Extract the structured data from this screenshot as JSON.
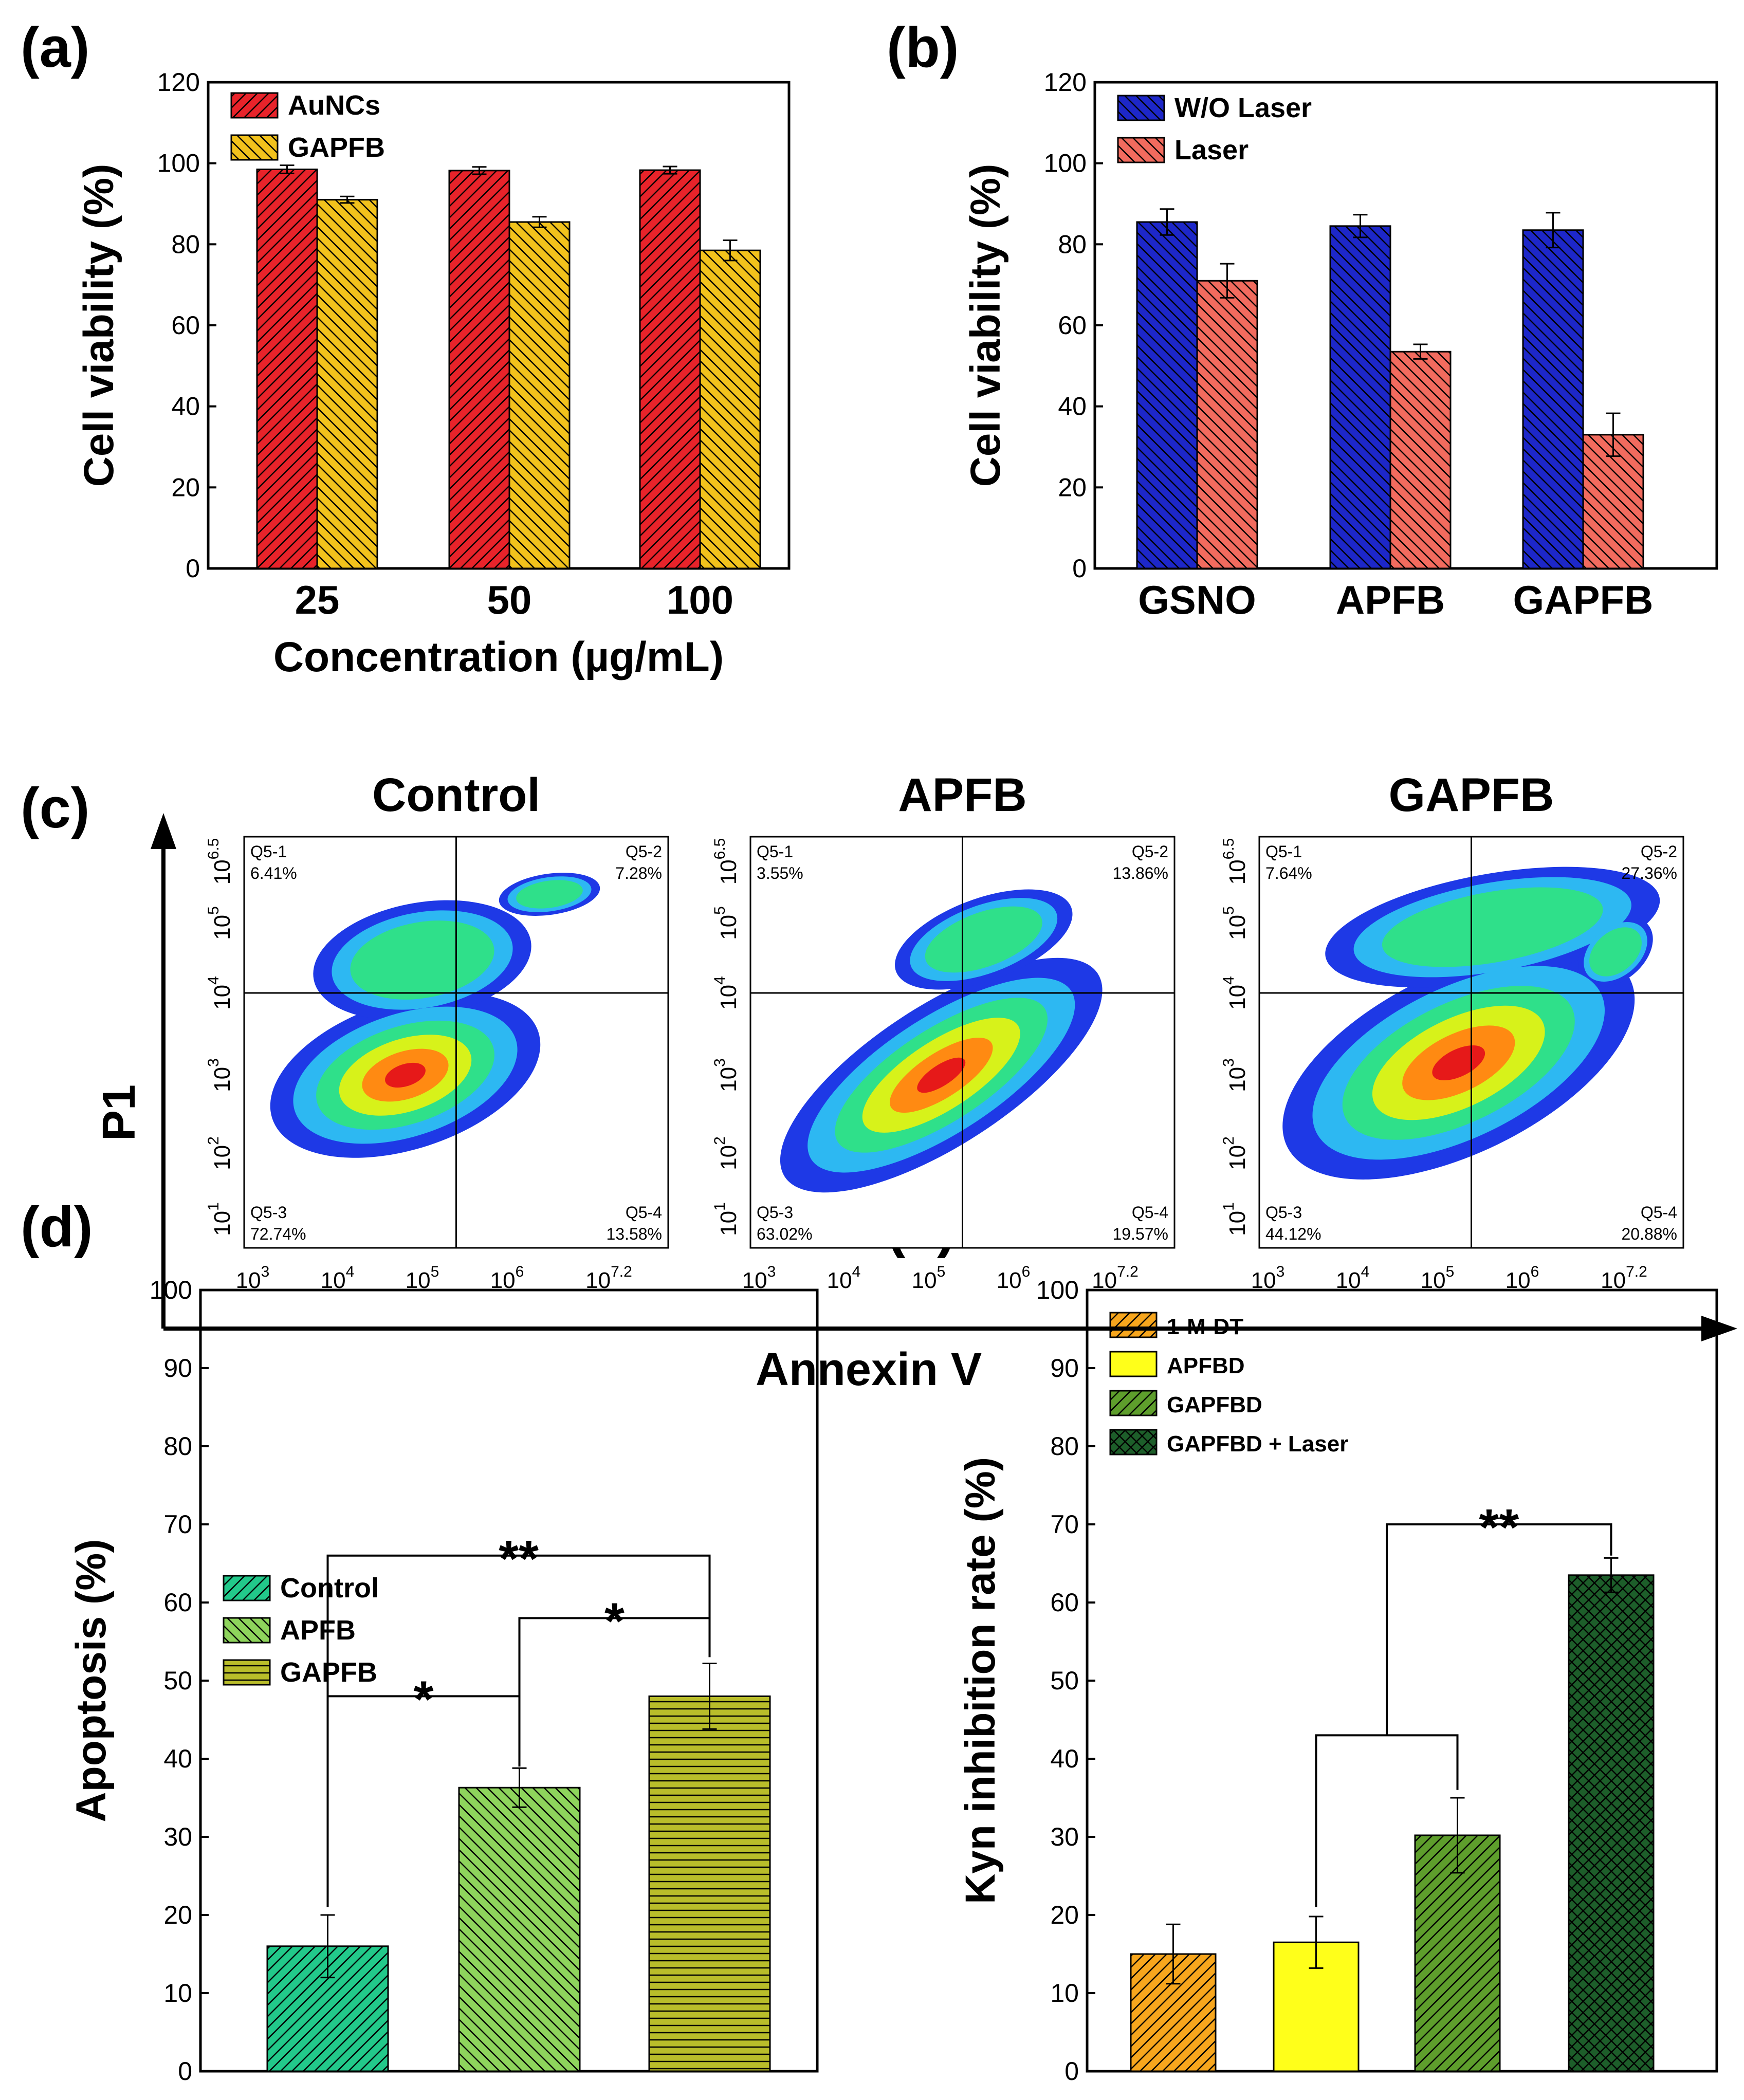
{
  "panel_labels": {
    "a": "(a)",
    "b": "(b)",
    "c": "(c)",
    "d": "(d)",
    "e": "(e)"
  },
  "colors": {
    "auncs": "#e8232a",
    "gapfb_yellow": "#f2c21c",
    "wo_laser": "#1d27c9",
    "laser": "#f26b5e",
    "control_d": "#22c98a",
    "apfb_d": "#8ed45c",
    "gapfb_d": "#b9bd2a",
    "mdt": "#f7a61d",
    "apfbd": "#ffff1a",
    "gapfbd": "#5e9e2c",
    "gapfbd_laser": "#1d5e2a"
  },
  "chart_data": [
    {
      "id": "a",
      "type": "bar",
      "title": "",
      "xlabel": "Concentration (µg/mL)",
      "ylabel": "Cell viability (%)",
      "ylim": [
        0,
        120
      ],
      "yticks": [
        "0",
        "20",
        "40",
        "60",
        "80",
        "100",
        "120"
      ],
      "categories": [
        "25",
        "50",
        "100"
      ],
      "series": [
        {
          "name": "AuNCs",
          "values": [
            98.5,
            98.2,
            98.3
          ],
          "errors": [
            1.0,
            0.9,
            0.9
          ]
        },
        {
          "name": "GAPFB",
          "values": [
            91,
            85.5,
            78.5
          ],
          "errors": [
            0.8,
            1.3,
            2.5
          ]
        }
      ]
    },
    {
      "id": "b",
      "type": "bar",
      "title": "",
      "xlabel": "",
      "ylabel": "Cell viability (%)",
      "ylim": [
        0,
        120
      ],
      "yticks": [
        "0",
        "20",
        "40",
        "60",
        "80",
        "100",
        "120"
      ],
      "categories": [
        "GSNO",
        "APFB",
        "GAPFB"
      ],
      "series": [
        {
          "name": "W/O Laser",
          "values": [
            85.5,
            84.5,
            83.5
          ],
          "errors": [
            3.2,
            2.8,
            4.3
          ]
        },
        {
          "name": "Laser",
          "values": [
            71,
            53.5,
            33
          ],
          "errors": [
            4.2,
            1.8,
            5.3
          ]
        }
      ]
    },
    {
      "id": "c",
      "type": "scatter",
      "xlabel": "Annexin V",
      "ylabel": "P1",
      "xticks": [
        {
          "b": "10",
          "e": "3"
        },
        {
          "b": "10",
          "e": "4"
        },
        {
          "b": "10",
          "e": "5"
        },
        {
          "b": "10",
          "e": "6"
        },
        {
          "b": "10",
          "e": "7.2"
        }
      ],
      "yticks": [
        {
          "b": "10",
          "e": "1"
        },
        {
          "b": "10",
          "e": "2"
        },
        {
          "b": "10",
          "e": "3"
        },
        {
          "b": "10",
          "e": "4"
        },
        {
          "b": "10",
          "e": "5"
        },
        {
          "b": "10",
          "e": "6.5"
        }
      ],
      "plots": [
        {
          "title": "Control",
          "q1": "Q5-1",
          "q1v": "6.41%",
          "q2": "Q5-2",
          "q2v": "7.28%",
          "q3": "Q5-3",
          "q3v": "72.74%",
          "q4": "Q5-4",
          "q4v": "13.58%"
        },
        {
          "title": "APFB",
          "q1": "Q5-1",
          "q1v": "3.55%",
          "q2": "Q5-2",
          "q2v": "13.86%",
          "q3": "Q5-3",
          "q3v": "63.02%",
          "q4": "Q5-4",
          "q4v": "19.57%"
        },
        {
          "title": "GAPFB",
          "q1": "Q5-1",
          "q1v": "7.64%",
          "q2": "Q5-2",
          "q2v": "27.36%",
          "q3": "Q5-3",
          "q3v": "44.12%",
          "q4": "Q5-4",
          "q4v": "20.88%"
        }
      ]
    },
    {
      "id": "d",
      "type": "bar",
      "xlabel": "",
      "ylabel": "Apoptosis (%)",
      "ylim": [
        0,
        100
      ],
      "yticks": [
        "0",
        "10",
        "20",
        "30",
        "40",
        "50",
        "60",
        "70",
        "80",
        "90",
        "100"
      ],
      "categories": [
        "Control",
        "APFB",
        "GAPFB"
      ],
      "values": [
        16,
        36.3,
        48
      ],
      "errors": [
        4,
        2.5,
        4.2
      ],
      "significance": [
        "**",
        "*",
        "*"
      ]
    },
    {
      "id": "e",
      "type": "bar",
      "xlabel": "",
      "ylabel": "Kyn inhibition rate (%)",
      "ylim": [
        0,
        100
      ],
      "yticks": [
        "0",
        "10",
        "20",
        "30",
        "40",
        "50",
        "60",
        "70",
        "80",
        "90",
        "100"
      ],
      "categories": [
        "1-M-DT",
        "APFBD",
        "GAPFBD",
        "GAPFBD + Laser"
      ],
      "values": [
        15,
        16.5,
        30.2,
        63.5
      ],
      "errors": [
        3.8,
        3.3,
        4.8,
        2.2
      ],
      "significance": [
        "**"
      ]
    }
  ]
}
